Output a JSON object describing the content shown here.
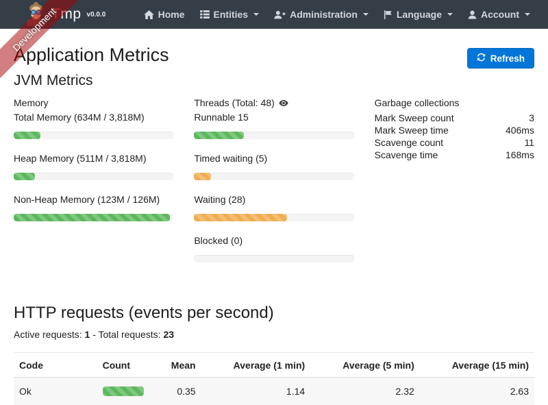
{
  "navbar": {
    "brand_accent": "T",
    "brand_rest": "mp",
    "version": "v0.0.0",
    "items": [
      {
        "label": "Home",
        "icon": "home-icon",
        "caret": false
      },
      {
        "label": "Entities",
        "icon": "list-icon",
        "caret": true
      },
      {
        "label": "Administration",
        "icon": "user-plus-icon",
        "caret": true
      },
      {
        "label": "Language",
        "icon": "flag-icon",
        "caret": true
      },
      {
        "label": "Account",
        "icon": "user-icon",
        "caret": true
      }
    ]
  },
  "ribbon": {
    "label": "Development"
  },
  "page": {
    "title": "Application Metrics",
    "refresh_label": "Refresh"
  },
  "jvm": {
    "title": "JVM Metrics",
    "memory": {
      "title": "Memory",
      "metrics": [
        {
          "label": "Total Memory (634M / 3,818M)",
          "percent": 16.6,
          "color": "#5cb85c"
        },
        {
          "label": "Heap Memory (511M / 3,818M)",
          "percent": 13.4,
          "color": "#5cb85c"
        },
        {
          "label": "Non-Heap Memory (123M / 126M)",
          "percent": 97.6,
          "color": "#5cb85c"
        }
      ]
    },
    "threads": {
      "title": "Threads (Total: 48)",
      "metrics": [
        {
          "label": "Runnable 15",
          "percent": 31.3,
          "color": "#5cb85c"
        },
        {
          "label": "Timed waiting (5)",
          "percent": 10.4,
          "color": "#f0ad4e"
        },
        {
          "label": "Waiting (28)",
          "percent": 58.3,
          "color": "#f0ad4e"
        },
        {
          "label": "Blocked (0)",
          "percent": 0,
          "color": "#5cb85c"
        }
      ]
    },
    "gc": {
      "title": "Garbage collections",
      "rows": [
        {
          "label": "Mark Sweep count",
          "value": "3"
        },
        {
          "label": "Mark Sweep time",
          "value": "406ms"
        },
        {
          "label": "Scavenge count",
          "value": "11"
        },
        {
          "label": "Scavenge time",
          "value": "168ms"
        }
      ]
    }
  },
  "http": {
    "title": "HTTP requests (events per second)",
    "active_label": "Active requests:",
    "active_value": "1",
    "separator": "-",
    "total_label": "Total requests:",
    "total_value": "23",
    "table": {
      "headers": [
        "Code",
        "Count",
        "Mean",
        "Average (1 min)",
        "Average (5 min)",
        "Average (15 min)"
      ],
      "rows": [
        {
          "code": "Ok",
          "count_percent": 100,
          "count_color": "#5cb85c",
          "mean": "0.35",
          "avg1": "1.14",
          "avg5": "2.32",
          "avg15": "2.63"
        }
      ]
    }
  },
  "colors": {
    "navbar_bg": "#353d47",
    "accent_blue": "#0275d8",
    "bar_green": "#5cb85c",
    "bar_orange": "#f0ad4e",
    "ribbon_red": "rgba(170,0,0,0.5)"
  }
}
